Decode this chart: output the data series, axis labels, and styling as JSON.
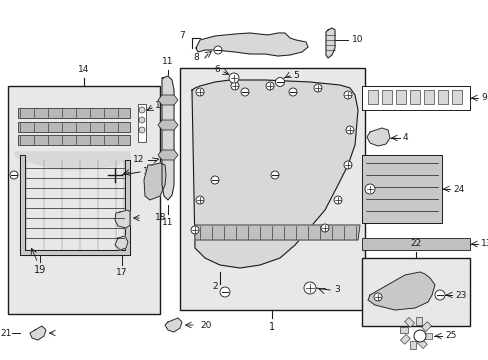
{
  "bg_color": "#ffffff",
  "line_color": "#1a1a1a",
  "part_fill": "#e8e8e8",
  "part_fill2": "#d8d8d8",
  "white": "#ffffff",
  "fig_width": 4.89,
  "fig_height": 3.6,
  "dpi": 100
}
